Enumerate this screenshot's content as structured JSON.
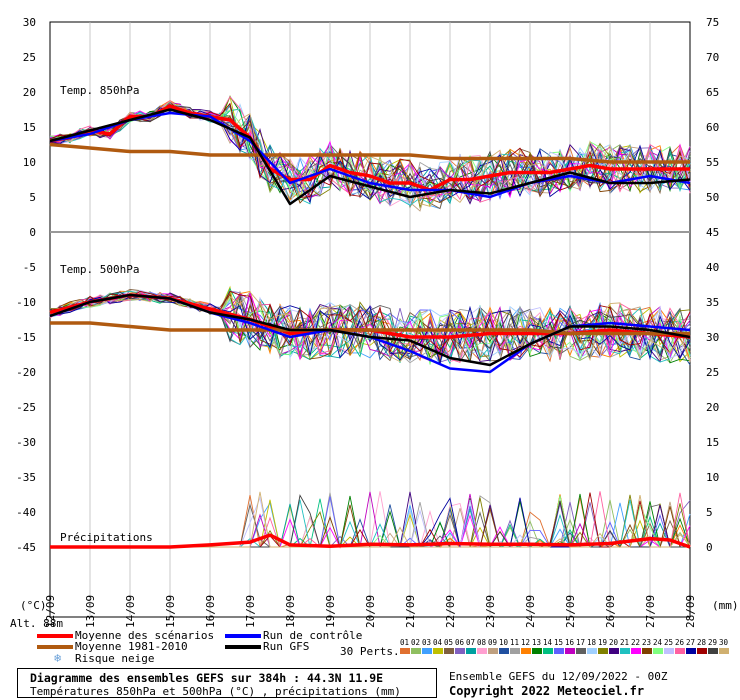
{
  "chart_data": {
    "type": "line",
    "title": "Diagramme des ensembles GEFS sur 384h : 44.3N 11.9E",
    "subtitle": "Températures 850hPa et 500hPa (°C) , précipitations (mm)",
    "x_labels": [
      "12/09",
      "13/09",
      "14/09",
      "15/09",
      "16/09",
      "17/09",
      "18/09",
      "19/09",
      "20/09",
      "21/09",
      "22/09",
      "23/09",
      "24/09",
      "25/09",
      "26/09",
      "27/09",
      "28/09"
    ],
    "left_axis": {
      "unit": "(°C)",
      "ticks": [
        30,
        25,
        20,
        15,
        10,
        5,
        0,
        -5,
        -10,
        -15,
        -20,
        -25,
        -30,
        -35,
        -40,
        -45
      ]
    },
    "right_axis": {
      "unit": "(mm)",
      "ticks": [
        75,
        70,
        65,
        60,
        55,
        50,
        45,
        40,
        35,
        30,
        25,
        20,
        15,
        10,
        5,
        0
      ]
    },
    "panel_labels": {
      "t850": "Temp. 850hPa",
      "t500": "Temp. 500hPa",
      "precip": "Précipitations"
    },
    "alt_label": "Alt. 88m",
    "series": [
      {
        "name": "Moyenne des scénarios (T850)",
        "color": "#ff0000",
        "x_days": [
          0,
          0.5,
          1,
          1.5,
          2,
          2.5,
          3,
          3.5,
          4,
          4.5,
          5,
          5.5,
          6,
          6.5,
          7,
          7.5,
          8,
          8.5,
          9,
          9.5,
          10,
          10.5,
          11,
          11.5,
          12,
          12.5,
          13,
          13.5,
          14,
          14.5,
          15,
          15.5,
          16
        ],
        "values": [
          13,
          13.5,
          14.5,
          14,
          16.5,
          16.5,
          18,
          17,
          16.5,
          16,
          13.5,
          9,
          7.5,
          7.5,
          9.5,
          8.5,
          8,
          7,
          7,
          6,
          7.5,
          7.5,
          8,
          8.5,
          8.5,
          8.5,
          9,
          9.5,
          9,
          9,
          9,
          9,
          9
        ]
      },
      {
        "name": "Moyenne 1981-2010 (T850)",
        "color": "#b05a10",
        "x_days": [
          0,
          1,
          2,
          3,
          4,
          5,
          6,
          7,
          8,
          9,
          10,
          11,
          12,
          13,
          14,
          15,
          16
        ],
        "values": [
          12.5,
          12,
          11.5,
          11.5,
          11,
          11,
          11,
          11,
          11,
          11,
          10.5,
          10.5,
          10.5,
          10.5,
          10,
          10,
          10
        ]
      },
      {
        "name": "Run de contrôle (T850)",
        "color": "#0000ff",
        "x_days": [
          0,
          1,
          2,
          3,
          4,
          5,
          6,
          7,
          8,
          9,
          10,
          11,
          12,
          13,
          14,
          15,
          16
        ],
        "values": [
          13,
          14,
          16,
          17,
          16.5,
          13,
          7,
          9,
          7,
          6,
          6,
          5,
          7,
          8,
          7,
          8,
          7
        ]
      },
      {
        "name": "Run GFS (T850)",
        "color": "#000000",
        "x_days": [
          0,
          1,
          2,
          3,
          4,
          5,
          6,
          7,
          8,
          9,
          10,
          11,
          12,
          13,
          14,
          15,
          16
        ],
        "values": [
          13,
          14.5,
          16,
          17.5,
          16,
          13.5,
          4,
          8,
          6.5,
          5,
          6,
          5.5,
          7,
          8.5,
          7,
          7,
          7.5
        ]
      },
      {
        "name": "Moyenne des scénarios (T500)",
        "color": "#ff0000",
        "x_days": [
          0,
          1,
          2,
          3,
          4,
          5,
          6,
          7,
          8,
          9,
          10,
          11,
          12,
          13,
          14,
          15,
          16
        ],
        "values": [
          -11.5,
          -10,
          -9,
          -9.5,
          -11,
          -12.5,
          -14.5,
          -14,
          -14,
          -15,
          -15,
          -14.5,
          -14.5,
          -14.5,
          -14,
          -14.5,
          -15
        ]
      },
      {
        "name": "Moyenne 1981-2010 (T500)",
        "color": "#b05a10",
        "x_days": [
          0,
          1,
          2,
          3,
          4,
          5,
          6,
          7,
          8,
          9,
          10,
          11,
          12,
          13,
          14,
          15,
          16
        ],
        "values": [
          -13,
          -13,
          -13.5,
          -14,
          -14,
          -14,
          -14,
          -14,
          -14,
          -14,
          -14,
          -14,
          -14,
          -14.5,
          -14.5,
          -14.5,
          -14.5
        ]
      },
      {
        "name": "Run de contrôle (T500)",
        "color": "#0000ff",
        "x_days": [
          0,
          1,
          2,
          3,
          4,
          5,
          6,
          7,
          8,
          9,
          10,
          11,
          12,
          13,
          14,
          15,
          16
        ],
        "values": [
          -12,
          -10,
          -9,
          -9.5,
          -11.5,
          -13,
          -15,
          -14,
          -15,
          -17,
          -19.5,
          -20,
          -16,
          -13.5,
          -13,
          -13.5,
          -14
        ]
      },
      {
        "name": "Run GFS (T500)",
        "color": "#000000",
        "x_days": [
          0,
          1,
          2,
          3,
          4,
          5,
          6,
          7,
          8,
          9,
          10,
          11,
          12,
          13,
          14,
          15,
          16
        ],
        "values": [
          -12,
          -10,
          -9,
          -9.5,
          -11.5,
          -12.5,
          -14,
          -14,
          -15,
          -15.5,
          -18,
          -19,
          -16,
          -13.5,
          -13.5,
          -14,
          -15
        ]
      },
      {
        "name": "Moyenne des scénarios (précipitations mm)",
        "color": "#ff0000",
        "x_days": [
          0,
          1,
          2,
          3,
          4,
          5,
          5.5,
          6,
          7,
          8,
          9,
          10,
          11,
          12,
          13,
          14,
          15,
          15.5,
          16
        ],
        "values": [
          0,
          0,
          0,
          0,
          0.3,
          0.7,
          1.7,
          0.3,
          0.1,
          0.4,
          0.3,
          0.5,
          0.4,
          0.4,
          0.3,
          0.5,
          1.2,
          1.0,
          0
        ]
      }
    ]
  },
  "legend": {
    "items": [
      {
        "label": "Moyenne des scénarios",
        "color": "#ff0000"
      },
      {
        "label": "Moyenne 1981-2010",
        "color": "#b05a10"
      },
      {
        "label": "Risque neige",
        "icon": "snowflake-icon",
        "color": "#6aa0d8"
      },
      {
        "label": "Run de contrôle",
        "color": "#0000ff"
      },
      {
        "label": "Run GFS",
        "color": "#000000"
      }
    ],
    "perts_label": "30 Perts.",
    "pert_numbers": [
      "01",
      "02",
      "03",
      "04",
      "05",
      "06",
      "07",
      "08",
      "09",
      "10",
      "11",
      "12",
      "13",
      "14",
      "15",
      "16",
      "17",
      "18",
      "19",
      "20",
      "21",
      "22",
      "23",
      "24",
      "25",
      "26",
      "27",
      "28",
      "29",
      "30"
    ],
    "pert_colors": [
      "#e07030",
      "#8fbf60",
      "#40a0ff",
      "#c0c000",
      "#7f6040",
      "#8060c0",
      "#00a0a0",
      "#ff9fd0",
      "#bfa080",
      "#2050a0",
      "#a0a0a0",
      "#ff8000",
      "#008000",
      "#00c080",
      "#6060ff",
      "#c000c0",
      "#606060",
      "#a0d0ff",
      "#808000",
      "#400080",
      "#20c0c0",
      "#ff00ff",
      "#804000",
      "#80ff80",
      "#c0c0ff",
      "#ff60a0",
      "#0000a0",
      "#a00000",
      "#404040",
      "#d0b070"
    ]
  },
  "info": {
    "title": "Diagramme des ensembles GEFS sur 384h : 44.3N 11.9E",
    "subtitle": "Températures 850hPa et 500hPa (°C) , précipitations (mm)",
    "run": "Ensemble GEFS du 12/09/2022 - 00Z",
    "copyright": "Copyright 2022 Meteociel.fr"
  }
}
